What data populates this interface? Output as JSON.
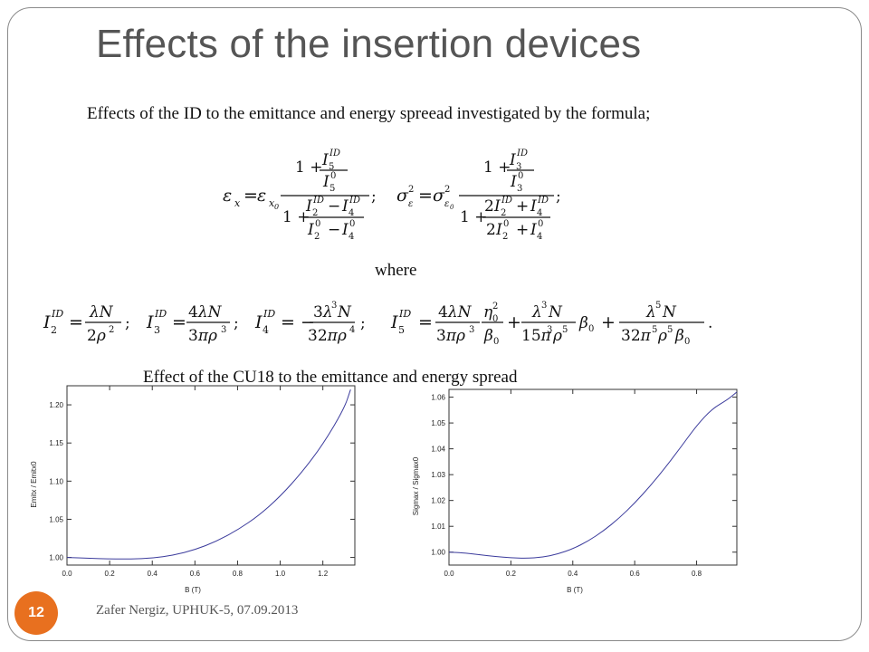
{
  "slide": {
    "title": "Effects of the insertion devices",
    "intro": "Effects of the ID to the emittance and energy spreead investigated by the formula;",
    "where": "where",
    "chart_caption": "Effect of the CU18 to the emittance and energy spread",
    "footer": "Zafer Nergiz, UPHUK-5, 07.09.2013",
    "page_number": "12"
  },
  "colors": {
    "title": "#555555",
    "accent": "#e8701f",
    "curve": "#3b3b9c",
    "frame": "#8a8a8a"
  },
  "chart_data": [
    {
      "type": "line",
      "title": "",
      "xlabel": "B (T)",
      "ylabel": "Emitx / Emitx0",
      "xlim": [
        0.0,
        1.35
      ],
      "ylim": [
        0.99,
        1.225
      ],
      "xticks": [
        "0.0",
        "0.2",
        "0.4",
        "0.6",
        "0.8",
        "1.0",
        "1.2"
      ],
      "yticks": [
        "1.00",
        "1.05",
        "1.10",
        "1.15",
        "1.20"
      ],
      "x": [
        0.0,
        0.1,
        0.2,
        0.3,
        0.4,
        0.5,
        0.6,
        0.7,
        0.8,
        0.9,
        1.0,
        1.1,
        1.2,
        1.3,
        1.33
      ],
      "y": [
        1.0,
        0.999,
        0.998,
        0.998,
        0.999,
        1.003,
        1.01,
        1.021,
        1.036,
        1.055,
        1.08,
        1.111,
        1.148,
        1.195,
        1.22
      ]
    },
    {
      "type": "line",
      "title": "",
      "xlabel": "B (T)",
      "ylabel": "Sigmax / Sigmax0",
      "xlim": [
        0.0,
        0.93
      ],
      "ylim": [
        0.995,
        1.063
      ],
      "xticks": [
        "0.0",
        "0.2",
        "0.4",
        "0.6",
        "0.8"
      ],
      "yticks": [
        "1.00",
        "1.01",
        "1.02",
        "1.03",
        "1.04",
        "1.05",
        "1.06"
      ],
      "x": [
        0.0,
        0.05,
        0.1,
        0.15,
        0.2,
        0.25,
        0.3,
        0.35,
        0.4,
        0.45,
        0.5,
        0.55,
        0.6,
        0.65,
        0.7,
        0.75,
        0.8,
        0.85,
        0.9,
        0.93
      ],
      "y": [
        1.0,
        0.9997,
        0.999,
        0.9983,
        0.9978,
        0.9976,
        0.998,
        0.9992,
        1.0013,
        1.0043,
        1.0083,
        1.0132,
        1.019,
        1.0256,
        1.0329,
        1.0408,
        1.049,
        1.0555,
        1.059,
        1.062
      ]
    }
  ]
}
